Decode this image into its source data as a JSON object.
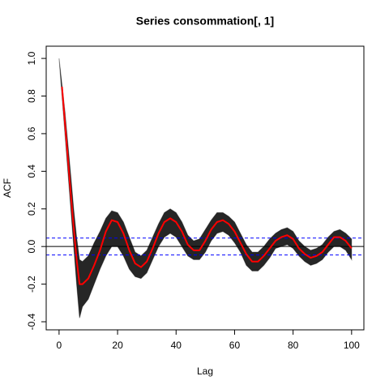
{
  "chart_data": {
    "type": "line",
    "title": "Series  consommation[, 1]",
    "x_label": "Lag",
    "y_label": "ACF",
    "x": [
      0,
      1,
      2,
      3,
      4,
      5,
      6,
      7,
      8,
      10,
      12,
      14,
      16,
      18,
      20,
      22,
      24,
      26,
      28,
      30,
      32,
      34,
      36,
      38,
      40,
      42,
      44,
      46,
      48,
      50,
      52,
      54,
      56,
      58,
      60,
      62,
      64,
      66,
      68,
      70,
      72,
      74,
      76,
      78,
      80,
      82,
      84,
      86,
      88,
      90,
      92,
      94,
      96,
      98,
      100
    ],
    "band": {
      "color": "#000000",
      "upper": [
        1,
        0.86,
        0.72,
        0.55,
        0.38,
        0.2,
        0.05,
        -0.07,
        -0.08,
        -0.05,
        0.02,
        0.08,
        0.15,
        0.19,
        0.18,
        0.13,
        0.05,
        -0.03,
        -0.05,
        -0.02,
        0.05,
        0.12,
        0.18,
        0.2,
        0.18,
        0.13,
        0.06,
        0.03,
        0.04,
        0.09,
        0.14,
        0.18,
        0.18,
        0.16,
        0.13,
        0.07,
        0.01,
        -0.03,
        -0.03,
        0,
        0.04,
        0.07,
        0.09,
        0.1,
        0.08,
        0.03,
        0,
        -0.02,
        -0.01,
        0.01,
        0.05,
        0.08,
        0.09,
        0.07,
        0.04
      ],
      "lower": [
        1,
        0.8,
        0.6,
        0.4,
        0.2,
        0,
        -0.2,
        -0.38,
        -0.32,
        -0.28,
        -0.2,
        -0.12,
        -0.05,
        0,
        0,
        -0.05,
        -0.12,
        -0.16,
        -0.17,
        -0.14,
        -0.07,
        0,
        0.05,
        0.07,
        0.05,
        0,
        -0.05,
        -0.07,
        -0.07,
        -0.03,
        0.03,
        0.07,
        0.08,
        0.06,
        0.02,
        -0.03,
        -0.1,
        -0.13,
        -0.13,
        -0.1,
        -0.06,
        -0.01,
        0,
        0.01,
        -0.01,
        -0.05,
        -0.08,
        -0.1,
        -0.09,
        -0.07,
        -0.03,
        0,
        0,
        -0.02,
        -0.07
      ]
    },
    "series": [
      {
        "color": "#ff0000",
        "values": [
          null,
          0.85,
          0.66,
          0.47,
          0.28,
          0.1,
          -0.07,
          -0.2,
          -0.2,
          -0.17,
          -0.1,
          -0.02,
          0.08,
          0.14,
          0.13,
          0.07,
          -0.02,
          -0.09,
          -0.11,
          -0.08,
          -0.01,
          0.07,
          0.13,
          0.15,
          0.13,
          0.08,
          0.01,
          -0.02,
          -0.02,
          0.03,
          0.09,
          0.13,
          0.14,
          0.12,
          0.08,
          0.02,
          -0.04,
          -0.08,
          -0.08,
          -0.05,
          -0.01,
          0.03,
          0.05,
          0.06,
          0.04,
          -0.01,
          -0.04,
          -0.06,
          -0.05,
          -0.03,
          0.01,
          0.05,
          0.05,
          0.03,
          -0.01
        ]
      }
    ],
    "hlines": [
      {
        "value": 0,
        "color": "#000000"
      },
      {
        "value": 0.045,
        "color": "#0000ff",
        "dashed": true
      },
      {
        "value": -0.045,
        "color": "#0000ff",
        "dashed": true
      }
    ],
    "xlim": [
      -4.4,
      104.2
    ],
    "ylim": [
      -0.443,
      1.065
    ],
    "xticks": [
      0,
      20,
      40,
      60,
      80,
      100
    ],
    "yticks": [
      -0.4,
      -0.2,
      {
        "value": 0,
        "label": "0.0"
      },
      0.2,
      0.4,
      0.6,
      0.8,
      {
        "value": 1,
        "label": "1.0"
      }
    ]
  }
}
